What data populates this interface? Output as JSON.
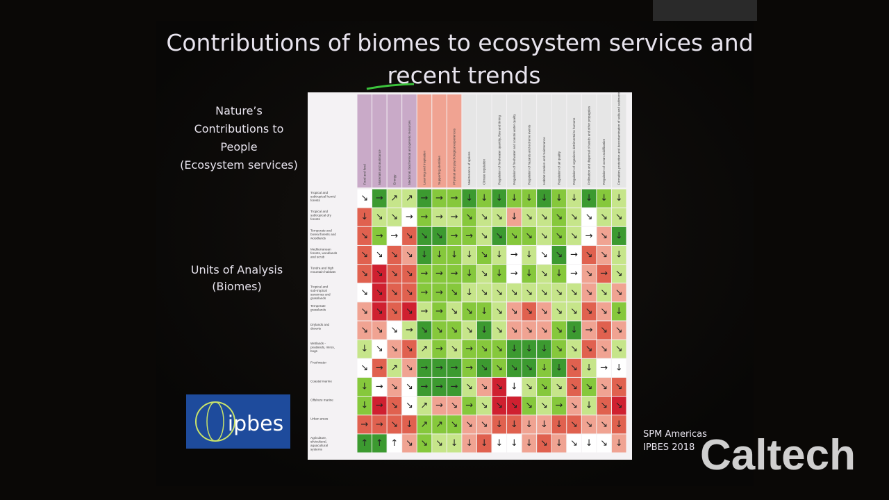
{
  "slide": {
    "title_lines": [
      "Contributions of biomes to ecosystem services and",
      "recent trends"
    ],
    "left_labels": {
      "ncp": [
        "Nature’s",
        "Contributions to",
        "People",
        "(Ecosystem services)"
      ],
      "units": [
        "Units of Analysis",
        "(Biomes)"
      ]
    },
    "logo": "ipbes",
    "source": [
      "SPM Americas",
      "IPBES 2018"
    ],
    "watermark": "Caltech",
    "matrix": {
      "palette": [
        "#ffffff",
        "#c6e58a",
        "#86c83c",
        "#3c9a30",
        "#f0a392",
        "#e0614f",
        "#cf2030"
      ],
      "columns": [
        "Food and feed",
        "Materials and assistance",
        "Energy",
        "Medicinal, biochemical and genetic resources",
        "Learning and inspiration",
        "Supporting identities",
        "Physical and psychological experiences",
        "Maintenance of options",
        "Climate regulation",
        "Regulation of freshwater quantity, flow and timing",
        "Regulation of freshwater and coastal water quality",
        "Regulation of hazards and extreme events",
        "Habitat creation and maintenance",
        "Regulation of air quality",
        "Regulation of organisms detrimental to humans",
        "Pollination and dispersal of seeds and other propagules",
        "Regulation of ocean acidification",
        "Formation, protection and decontamination of soils and sediments"
      ],
      "column_colors": [
        "#c9aac8",
        "#c9aac8",
        "#c9aac8",
        "#c9aac8",
        "#f0a392",
        "#f0a392",
        "#f0a392",
        "#e6e6e6",
        "#e6e6e6",
        "#e6e6e6",
        "#e6e6e6",
        "#e6e6e6",
        "#e6e6e6",
        "#e6e6e6",
        "#e6e6e6",
        "#e6e6e6",
        "#e6e6e6",
        "#e6e6e6"
      ],
      "rows": [
        {
          "label": "Tropical and subtropical humid forests",
          "levels": [
            0,
            3,
            1,
            1,
            3,
            2,
            2,
            3,
            2,
            3,
            2,
            2,
            3,
            2,
            1,
            3,
            2,
            1
          ],
          "arrows": [
            "↘",
            "→",
            "↗",
            "↗",
            "→",
            "→",
            "→",
            "↓",
            "↓",
            "↓",
            "↓",
            "↓",
            "↓",
            "↓",
            "↓",
            "↓",
            "↓",
            "↓"
          ]
        },
        {
          "label": "Tropical and subtropical dry forests",
          "levels": [
            5,
            1,
            1,
            0,
            2,
            1,
            1,
            2,
            1,
            1,
            4,
            1,
            1,
            2,
            1,
            0,
            1,
            1
          ],
          "arrows": [
            "↓",
            "↘",
            "↘",
            "→",
            "→",
            "→",
            "→",
            "↘",
            "↘",
            "↘",
            "↓",
            "↘",
            "↘",
            "↘",
            "↘",
            "↘",
            "↘",
            "↘"
          ]
        },
        {
          "label": "Temperate and boreal forests and woodlands",
          "levels": [
            5,
            2,
            0,
            5,
            3,
            3,
            2,
            2,
            1,
            3,
            2,
            2,
            1,
            2,
            1,
            0,
            4,
            3
          ],
          "arrows": [
            "↘",
            "→",
            "→",
            "↘",
            "↘",
            "↘",
            "→",
            "→",
            "↘",
            "↘",
            "↘",
            "↘",
            "↘",
            "↘",
            "↘",
            "→",
            "↘",
            "↓"
          ]
        },
        {
          "label": "Mediterranean forests, woodlands and scrub",
          "levels": [
            5,
            0,
            5,
            4,
            3,
            2,
            2,
            1,
            2,
            1,
            0,
            1,
            0,
            3,
            0,
            5,
            4,
            1
          ],
          "arrows": [
            "↘",
            "↘",
            "↘",
            "↘",
            "↓",
            "↓",
            "↓",
            "↓",
            "↘",
            "↓",
            "→",
            "↓",
            "↘",
            "↘",
            "→",
            "↘",
            "↘",
            "↓"
          ]
        },
        {
          "label": "Tundra and high mountain habitats",
          "levels": [
            5,
            6,
            5,
            5,
            2,
            2,
            2,
            2,
            1,
            2,
            0,
            2,
            1,
            2,
            0,
            4,
            5,
            1
          ],
          "arrows": [
            "↘",
            "↘",
            "↘",
            "↘",
            "→",
            "→",
            "→",
            "↓",
            "↘",
            "↓",
            "→",
            "↓",
            "↘",
            "↓",
            "→",
            "↘",
            "→",
            "↘"
          ]
        },
        {
          "label": "Tropical and sub-tropical savannas and grasslands",
          "levels": [
            0,
            6,
            5,
            5,
            2,
            2,
            2,
            1,
            1,
            1,
            1,
            1,
            1,
            1,
            1,
            4,
            1,
            4
          ],
          "arrows": [
            "↘",
            "↘",
            "↘",
            "↘",
            "→",
            "→",
            "↘",
            "↓",
            "↘",
            "↘",
            "↘",
            "↘",
            "↘",
            "↘",
            "↘",
            "↘",
            "↘",
            "↘"
          ]
        },
        {
          "label": "Temperate grasslands",
          "levels": [
            4,
            6,
            5,
            6,
            1,
            2,
            1,
            2,
            2,
            1,
            4,
            5,
            4,
            1,
            1,
            5,
            4,
            2
          ],
          "arrows": [
            "↘",
            "↘",
            "↘",
            "↘",
            "→",
            "→",
            "↘",
            "↘",
            "↓",
            "↘",
            "↘",
            "↘",
            "↘",
            "↘",
            "↘",
            "↘",
            "↘",
            "↓"
          ]
        },
        {
          "label": "Drylands and deserts",
          "levels": [
            4,
            4,
            0,
            1,
            3,
            2,
            2,
            1,
            3,
            1,
            4,
            4,
            4,
            2,
            3,
            4,
            5,
            4
          ],
          "arrows": [
            "↘",
            "↘",
            "↘",
            "→",
            "↘",
            "↘",
            "↘",
            "↘",
            "↓",
            "↘",
            "↘",
            "↘",
            "↘",
            "↘",
            "↓",
            "→",
            "↘",
            "↘"
          ]
        },
        {
          "label": "Wetlands - peatlands, mires, bogs",
          "levels": [
            1,
            0,
            4,
            5,
            1,
            2,
            1,
            2,
            2,
            2,
            3,
            3,
            3,
            2,
            1,
            5,
            4,
            1
          ],
          "arrows": [
            "↓",
            "↘",
            "↘",
            "↘",
            "↗",
            "→",
            "↘",
            "→",
            "↘",
            "↘",
            "↓",
            "↓",
            "↓",
            "↘",
            "↘",
            "↘",
            "↘",
            "↘"
          ]
        },
        {
          "label": "Freshwater",
          "levels": [
            0,
            5,
            1,
            4,
            3,
            3,
            3,
            2,
            3,
            2,
            3,
            3,
            2,
            3,
            5,
            1,
            0,
            0
          ],
          "arrows": [
            "↘",
            "→",
            "↗",
            "↘",
            "→",
            "→",
            "→",
            "→",
            "↘",
            "↘",
            "↘",
            "↘",
            "↓",
            "↓",
            "↘",
            "↓",
            "→",
            "↓"
          ]
        },
        {
          "label": "Coastal marine",
          "levels": [
            2,
            0,
            4,
            0,
            3,
            3,
            3,
            1,
            4,
            6,
            0,
            1,
            2,
            1,
            5,
            2,
            4,
            5
          ],
          "arrows": [
            "↓",
            "→",
            "↘",
            "↘",
            "→",
            "→",
            "→",
            "↘",
            "↘",
            "↘",
            "↓",
            "↘",
            "↘",
            "↘",
            "↘",
            "↘",
            "↘",
            "↘"
          ]
        },
        {
          "label": "Offshore marine",
          "levels": [
            2,
            6,
            5,
            0,
            1,
            4,
            4,
            2,
            1,
            6,
            6,
            2,
            1,
            2,
            4,
            1,
            5,
            6
          ],
          "arrows": [
            "↓",
            "→",
            "↘",
            "↘",
            "↗",
            "→",
            "↘",
            "→",
            "↘",
            "↘",
            "↘",
            "↘",
            "↘",
            "→",
            "↘",
            "↓",
            "↘",
            "↘"
          ]
        },
        {
          "label": "Urban areas",
          "levels": [
            5,
            5,
            5,
            5,
            2,
            2,
            2,
            4,
            4,
            5,
            5,
            4,
            4,
            5,
            5,
            4,
            4,
            5
          ],
          "arrows": [
            "→",
            "→",
            "↘",
            "↓",
            "↗",
            "↗",
            "↘",
            "↘",
            "↘",
            "↓",
            "↓",
            "↓",
            "↓",
            "↓",
            "↘",
            "↘",
            "↘",
            "↓"
          ]
        },
        {
          "label": "Agriculture, silvicultural, aquacultural systems",
          "levels": [
            3,
            3,
            0,
            4,
            2,
            1,
            1,
            4,
            5,
            0,
            0,
            4,
            5,
            4,
            0,
            0,
            0,
            4
          ],
          "arrows": [
            "↑",
            "↑",
            "↑",
            "↘",
            "↘",
            "↘",
            "↓",
            "↓",
            "↓",
            "↓",
            "↓",
            "↓",
            "↘",
            "↓",
            "↘",
            "↓",
            "↘",
            "↓"
          ]
        }
      ]
    }
  }
}
